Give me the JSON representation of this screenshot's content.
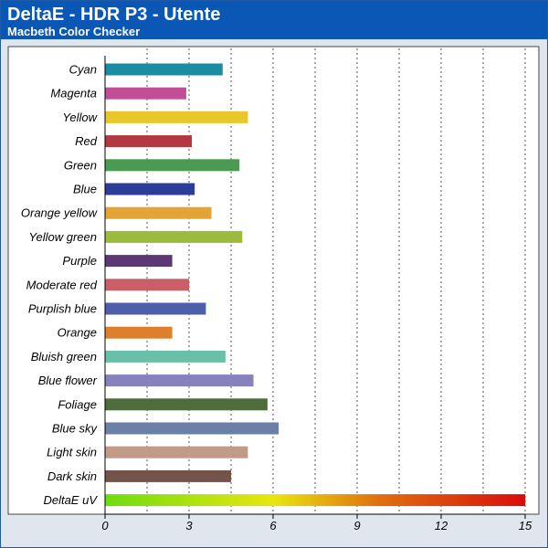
{
  "header": {
    "title": "DeltaE - HDR P3 - Utente",
    "subtitle": "Macbeth Color Checker"
  },
  "colors": {
    "header_bg": "#0a57b5",
    "plot_bg": "#ffffff",
    "frame_bg": "#dfe6ee"
  },
  "chart_data": {
    "type": "bar",
    "orientation": "horizontal",
    "title": "DeltaE - HDR P3 - Utente",
    "subtitle": "Macbeth Color Checker",
    "xlim": [
      0,
      15
    ],
    "xticks": [
      0,
      3,
      6,
      9,
      12,
      15
    ],
    "grid": "vertical dotted",
    "categories": [
      "Cyan",
      "Magenta",
      "Yellow",
      "Red",
      "Green",
      "Blue",
      "Orange yellow",
      "Yellow green",
      "Purple",
      "Moderate red",
      "Purplish blue",
      "Orange",
      "Bluish green",
      "Blue flower",
      "Foliage",
      "Blue sky",
      "Light skin",
      "Dark skin",
      "DeltaE uV"
    ],
    "values": [
      4.2,
      2.9,
      5.1,
      3.1,
      4.8,
      3.2,
      3.8,
      4.9,
      2.4,
      3.0,
      3.6,
      2.4,
      4.3,
      5.3,
      5.8,
      6.2,
      5.1,
      4.5,
      15
    ],
    "bar_colors": [
      "#1a8da5",
      "#c24f96",
      "#e9c62a",
      "#b23942",
      "#4a9a52",
      "#2b3d96",
      "#e4a434",
      "#9cba3c",
      "#5c3874",
      "#c95d68",
      "#4f5eab",
      "#df7f2c",
      "#6abfa8",
      "#8781bd",
      "#4f6d3a",
      "#6a80a6",
      "#c29a86",
      "#745448",
      "gradient"
    ]
  }
}
